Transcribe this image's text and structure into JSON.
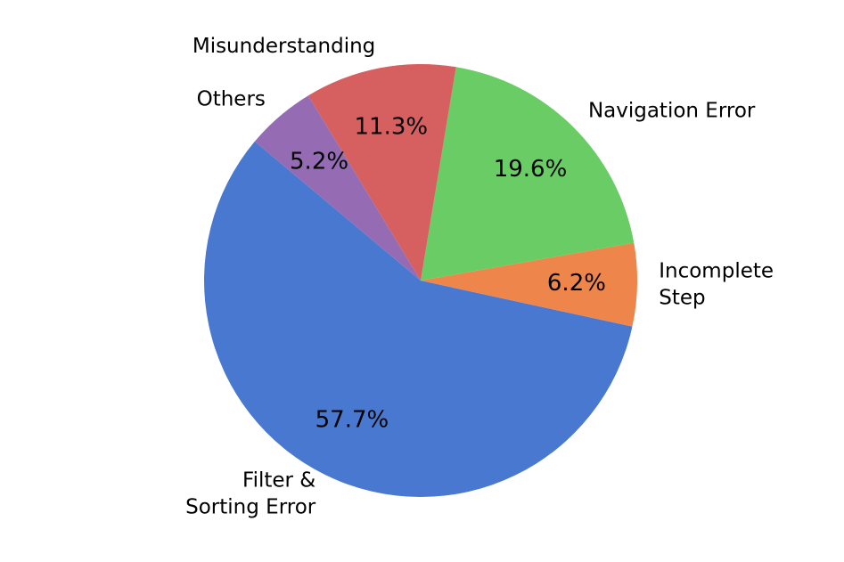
{
  "chart_data": {
    "type": "pie",
    "categories": [
      [
        "Filter &",
        "Sorting Error"
      ],
      [
        "Incomplete",
        "Step"
      ],
      [
        "Navigation Error"
      ],
      [
        "Misunderstanding"
      ],
      [
        "Others"
      ]
    ],
    "values": [
      57.7,
      6.2,
      19.6,
      11.3,
      5.2
    ],
    "value_labels": [
      "57.7%",
      "6.2%",
      "19.6%",
      "11.3%",
      "5.2%"
    ],
    "colors": [
      "#4878d0",
      "#ee854a",
      "#6acc64",
      "#d65f5f",
      "#956cb4"
    ],
    "start_angle": 140
  }
}
